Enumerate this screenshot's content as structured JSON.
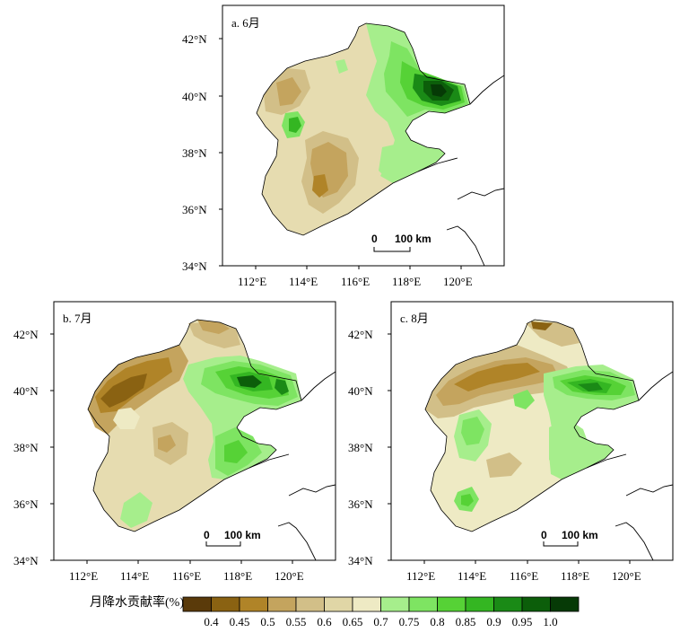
{
  "panels": [
    {
      "id": "a",
      "label": "a. 6月",
      "lat_labels": [
        "42°N",
        "40°N",
        "38°N",
        "36°N",
        "34°N"
      ],
      "lon_labels": [
        "112°E",
        "114°E",
        "116°E",
        "118°E",
        "120°E"
      ],
      "scalebar": {
        "zero": "0",
        "distance": "100 km"
      }
    },
    {
      "id": "b",
      "label": "b. 7月",
      "lat_labels": [
        "42°N",
        "40°N",
        "38°N",
        "36°N",
        "34°N"
      ],
      "lon_labels": [
        "112°E",
        "114°E",
        "116°E",
        "118°E",
        "120°E"
      ],
      "scalebar": {
        "zero": "0",
        "distance": "100 km"
      }
    },
    {
      "id": "c",
      "label": "c. 8月",
      "lat_labels": [
        "42°N",
        "40°N",
        "38°N",
        "36°N",
        "34°N"
      ],
      "lon_labels": [
        "112°E",
        "114°E",
        "116°E",
        "118°E",
        "120°E"
      ],
      "scalebar": {
        "zero": "0",
        "distance": "100 km"
      }
    }
  ],
  "colorbar": {
    "title": "月降水贡献率(%)",
    "ticks": [
      "0.4",
      "0.45",
      "0.5",
      "0.55",
      "0.6",
      "0.65",
      "0.7",
      "0.75",
      "0.8",
      "0.85",
      "0.9",
      "0.95",
      "1.0"
    ],
    "colors": [
      "#5a3a0a",
      "#8a6212",
      "#b08428",
      "#c4a45e",
      "#d2bf88",
      "#e0d6a6",
      "#eeeac4",
      "#a6ee8c",
      "#7ee462",
      "#56d236",
      "#34b622",
      "#1a8a16",
      "#0c5e0a",
      "#063a06"
    ]
  }
}
